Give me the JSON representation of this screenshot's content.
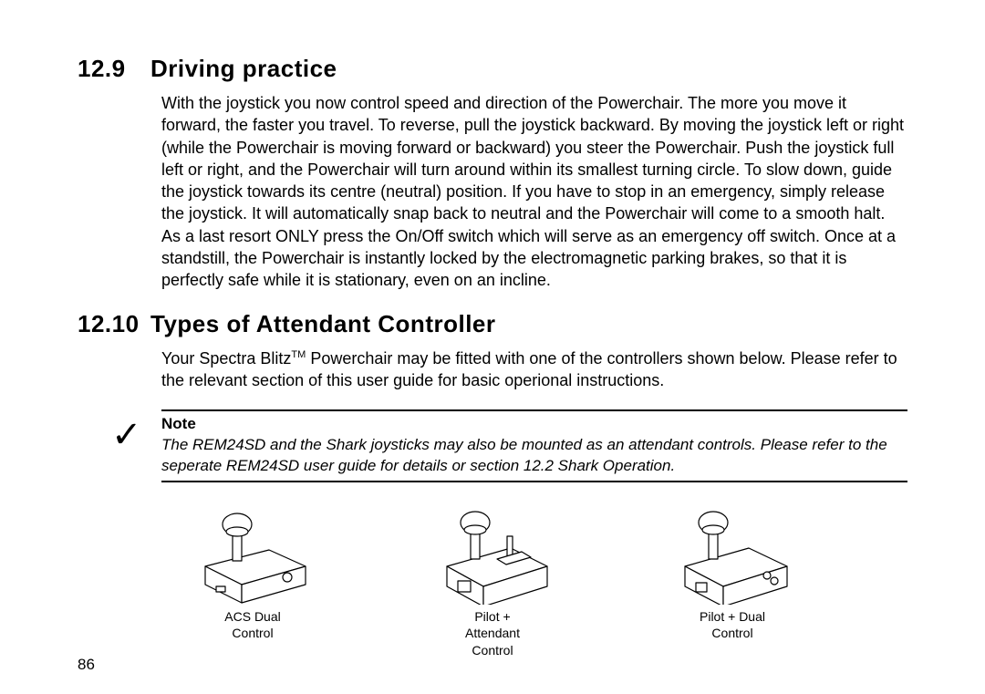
{
  "section1": {
    "number": "12.9",
    "title": "Driving practice",
    "body": "With the joystick you now control speed and direction of the Powerchair. The more you move it forward, the faster you travel. To reverse, pull the joystick backward. By moving the joystick left or right (while the Powerchair is moving forward or backward) you steer the Powerchair. Push the joystick full left or right, and the Powerchair will turn around within its smallest turning circle. To slow down, guide the joystick towards its centre (neutral) position. If you have to stop in an emergency, simply release the joystick. It will automatically snap back to neutral and the Powerchair will come to a smooth halt. As a last resort ONLY press the On/Off switch which will serve as an emergency off switch. Once at a standstill, the Powerchair is instantly locked by the electromagnetic parking brakes, so that it is perfectly safe while it is stationary, even on an incline."
  },
  "section2": {
    "number": "12.10",
    "title": "Types of Attendant Controller",
    "intro_pre": "Your Spectra Blitz",
    "intro_tm": "TM",
    "intro_post": " Powerchair may be fitted with one of the controllers shown below. Please refer to the relevant section of this user guide for basic operional instructions."
  },
  "note": {
    "label": "Note",
    "body": "The REM24SD and the Shark joysticks may also be mounted as an attendant controls. Please refer to the seperate REM24SD user guide for details or section 12.2 Shark Operation.",
    "checkmark": "✓"
  },
  "controllers": [
    {
      "caption": "ACS Dual\nControl"
    },
    {
      "caption": "Pilot +\nAttendant\nControl"
    },
    {
      "caption": "Pilot + Dual\nControl"
    }
  ],
  "page_number": "86",
  "diagram_style": {
    "stroke": "#000000",
    "fill": "#ffffff",
    "stroke_width": 1.2
  }
}
